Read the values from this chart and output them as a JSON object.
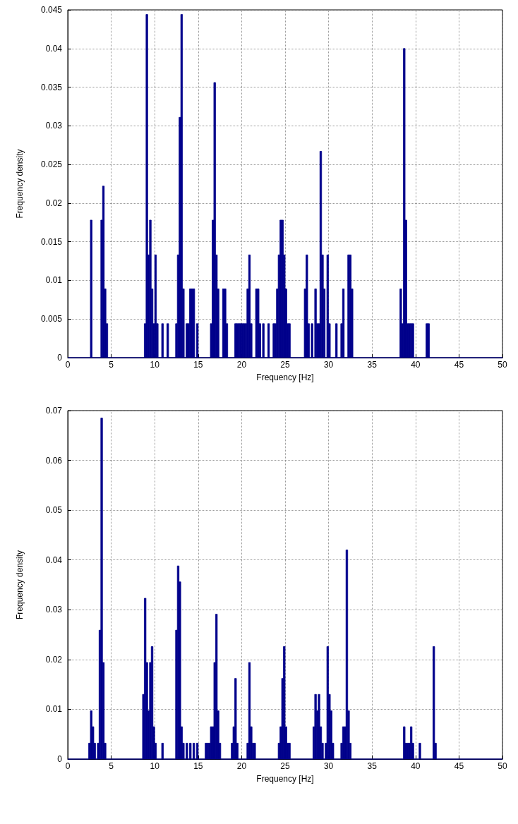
{
  "chart_data": [
    {
      "type": "histogram",
      "xlabel": "Frequency [Hz]",
      "ylabel": "Frequency density",
      "color": "#00008b",
      "grid": true,
      "xlim": [
        0,
        50
      ],
      "xticks": [
        0,
        5,
        10,
        15,
        20,
        25,
        30,
        35,
        40,
        45,
        50
      ],
      "ylim": [
        0,
        0.045
      ],
      "yticks": [
        0,
        0.005,
        0.01,
        0.015,
        0.02,
        0.025,
        0.03,
        0.035,
        0.04,
        0.045
      ],
      "bins": [
        0,
        2.6,
        2.8,
        3.8,
        4.0,
        4.2,
        4.4,
        4.6,
        8.8,
        9.0,
        9.2,
        9.4,
        9.6,
        9.8,
        10.0,
        10.2,
        10.4,
        10.8,
        11.0,
        11.4,
        11.6,
        12.4,
        12.6,
        12.8,
        13.0,
        13.2,
        13.4,
        13.6,
        13.8,
        14.0,
        14.2,
        14.4,
        14.6,
        14.8,
        15.0,
        16.4,
        16.6,
        16.8,
        17.0,
        17.2,
        17.4,
        17.8,
        18.0,
        18.2,
        18.4,
        19.2,
        19.4,
        19.6,
        19.8,
        20.0,
        20.2,
        20.4,
        20.6,
        20.8,
        21.0,
        21.2,
        21.6,
        21.8,
        22.0,
        22.2,
        22.4,
        22.6,
        23.0,
        23.2,
        23.6,
        23.8,
        24.0,
        24.2,
        24.4,
        24.6,
        24.8,
        25.0,
        25.2,
        25.4,
        25.6,
        27.2,
        27.4,
        27.6,
        27.8,
        28.0,
        28.2,
        28.4,
        28.6,
        28.8,
        29.0,
        29.2,
        29.4,
        29.6,
        29.8,
        30.0,
        30.2,
        30.8,
        31.0,
        31.4,
        31.6,
        31.8,
        32.2,
        32.4,
        32.6,
        32.8,
        38.2,
        38.4,
        38.6,
        38.8,
        39.0,
        39.2,
        39.4,
        39.6,
        39.8,
        41.2,
        41.4,
        41.6,
        50
      ],
      "values": [
        0,
        0.0178,
        0,
        0.0178,
        0.0222,
        0.0089,
        0.0044,
        0,
        0.0044,
        0.0444,
        0.0133,
        0.0178,
        0.0089,
        0.0044,
        0.0133,
        0.0044,
        0,
        0.0044,
        0,
        0.0044,
        0,
        0.0044,
        0.0133,
        0.0311,
        0.0444,
        0.0089,
        0,
        0.0044,
        0.0044,
        0.0089,
        0.0089,
        0.0089,
        0,
        0.0044,
        0,
        0.0044,
        0.0178,
        0.0356,
        0.0133,
        0.0089,
        0,
        0.0089,
        0.0089,
        0.0044,
        0,
        0.0044,
        0.0044,
        0.0044,
        0.0044,
        0.0044,
        0.0044,
        0.0044,
        0.0089,
        0.0133,
        0.0044,
        0,
        0.0089,
        0.0089,
        0.0044,
        0,
        0.0044,
        0,
        0.0044,
        0,
        0.0044,
        0.0044,
        0.0089,
        0.0133,
        0.0178,
        0.0178,
        0.0133,
        0.0089,
        0.0044,
        0.0044,
        0,
        0.0089,
        0.0133,
        0.0044,
        0,
        0.0044,
        0,
        0.0089,
        0.0044,
        0.0044,
        0.0267,
        0.0133,
        0.0089,
        0,
        0.0133,
        0.0044,
        0,
        0.0044,
        0,
        0.0044,
        0.0089,
        0,
        0.0133,
        0.0133,
        0.0089,
        0,
        0.0089,
        0.0044,
        0.04,
        0.0178,
        0.0044,
        0.0044,
        0.0044,
        0.0044,
        0,
        0.0044,
        0.0044,
        0
      ]
    },
    {
      "type": "histogram",
      "xlabel": "Frequency [Hz]",
      "ylabel": "Frequency density",
      "color": "#00008b",
      "grid": true,
      "xlim": [
        0,
        50
      ],
      "xticks": [
        0,
        5,
        10,
        15,
        20,
        25,
        30,
        35,
        40,
        45,
        50
      ],
      "ylim": [
        0,
        0.07
      ],
      "yticks": [
        0,
        0.01,
        0.02,
        0.03,
        0.04,
        0.05,
        0.06,
        0.07
      ],
      "bins": [
        0,
        2.4,
        2.6,
        2.8,
        3.0,
        3.2,
        3.4,
        3.6,
        3.8,
        4.0,
        4.2,
        4.4,
        8.6,
        8.8,
        9.0,
        9.2,
        9.4,
        9.6,
        9.8,
        10.0,
        10.2,
        10.8,
        11.0,
        12.4,
        12.6,
        12.8,
        13.0,
        13.2,
        13.4,
        13.6,
        13.8,
        14.0,
        14.2,
        14.4,
        14.6,
        14.8,
        15.0,
        15.8,
        16.0,
        16.2,
        16.4,
        16.6,
        16.8,
        17.0,
        17.2,
        17.4,
        17.6,
        18.8,
        19.0,
        19.2,
        19.4,
        19.6,
        20.6,
        20.8,
        21.0,
        21.2,
        21.4,
        21.6,
        24.2,
        24.4,
        24.6,
        24.8,
        25.0,
        25.2,
        25.4,
        25.6,
        28.2,
        28.4,
        28.6,
        28.8,
        29.0,
        29.2,
        29.4,
        29.6,
        29.8,
        30.0,
        30.2,
        30.4,
        30.6,
        31.4,
        31.6,
        31.8,
        32.0,
        32.2,
        32.4,
        32.6,
        38.6,
        38.8,
        39.0,
        39.2,
        39.4,
        39.6,
        39.8,
        40.4,
        40.6,
        42.0,
        42.2,
        42.4,
        50
      ],
      "values": [
        0,
        0.0032,
        0.0097,
        0.0065,
        0.0032,
        0,
        0.0032,
        0.0259,
        0.0685,
        0.0194,
        0.0032,
        0,
        0.013,
        0.0323,
        0.0194,
        0.0097,
        0.0194,
        0.0226,
        0.0065,
        0.0032,
        0,
        0.0032,
        0,
        0.0259,
        0.0388,
        0.0356,
        0.0065,
        0.0032,
        0,
        0.0032,
        0,
        0.0032,
        0,
        0.0032,
        0,
        0.0032,
        0,
        0.0032,
        0.0032,
        0.0032,
        0.0065,
        0.0065,
        0.0194,
        0.0291,
        0.0097,
        0.0032,
        0,
        0.0032,
        0.0065,
        0.0162,
        0.0032,
        0,
        0.0032,
        0.0194,
        0.0065,
        0.0032,
        0.0032,
        0,
        0.0032,
        0.0065,
        0.0162,
        0.0226,
        0.0065,
        0.0032,
        0.0032,
        0,
        0.0065,
        0.013,
        0.0097,
        0.013,
        0.0065,
        0.0032,
        0,
        0.0032,
        0.0226,
        0.013,
        0.0097,
        0.0032,
        0,
        0.0032,
        0.0065,
        0.0065,
        0.042,
        0.0097,
        0.0032,
        0,
        0.0065,
        0.0032,
        0.0032,
        0.0032,
        0.0065,
        0.0032,
        0,
        0.0032,
        0,
        0.0226,
        0.0032,
        0
      ]
    }
  ]
}
